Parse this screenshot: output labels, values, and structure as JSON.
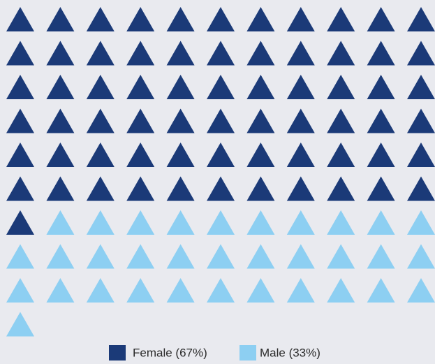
{
  "chart_data": {
    "type": "waffle",
    "columns": 11,
    "series": [
      {
        "name": "Female (67%)",
        "color": "#1b3a78",
        "values": [
          67
        ]
      },
      {
        "name": "Male (33%)",
        "color": "#8dcff2",
        "values": [
          33
        ]
      }
    ]
  }
}
